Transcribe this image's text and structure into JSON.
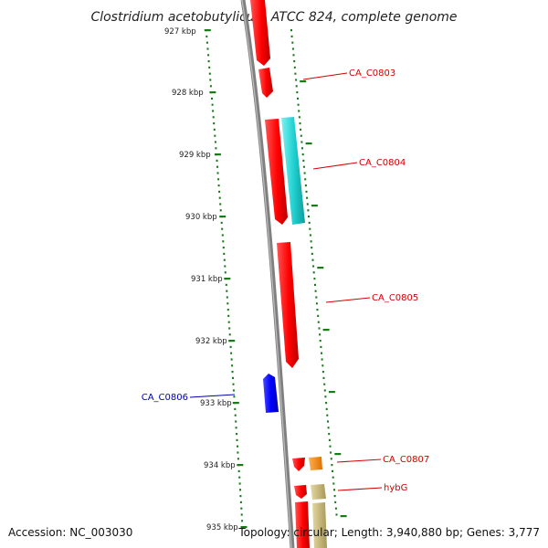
{
  "title": "Clostridium acetobutylicum ATCC 824, complete genome",
  "footer": {
    "accession": "Accession: NC_003030",
    "topology": "Topology: circular; Length: 3,940,880 bp; Genes: 3,777"
  },
  "ticks": [
    {
      "label": "927 kbp",
      "kbp": 927
    },
    {
      "label": "928 kbp",
      "kbp": 928
    },
    {
      "label": "929 kbp",
      "kbp": 929
    },
    {
      "label": "930 kbp",
      "kbp": 930
    },
    {
      "label": "931 kbp",
      "kbp": 931
    },
    {
      "label": "932 kbp",
      "kbp": 932
    },
    {
      "label": "933 kbp",
      "kbp": 933
    },
    {
      "label": "934 kbp",
      "kbp": 934
    },
    {
      "label": "935 kbp",
      "kbp": 935
    }
  ],
  "gene_labels": [
    {
      "name": "CA_C0803",
      "color": "#d40000"
    },
    {
      "name": "CA_C0804",
      "color": "#d40000"
    },
    {
      "name": "CA_C0805",
      "color": "#d40000"
    },
    {
      "name": "CA_C0806",
      "color": "#0000b0"
    },
    {
      "name": "CA_C0807",
      "color": "#d40000"
    },
    {
      "name": "hybG",
      "color": "#d40000"
    }
  ],
  "colors": {
    "forward_gene": "#ff0000",
    "reverse_gene": "#0000ff",
    "teal_feature": "#22d3d3",
    "orange_feature": "#ff8800",
    "khaki_feature": "#c8b878",
    "tick_marks": "#1a7a1a",
    "backbone": "#808080"
  }
}
